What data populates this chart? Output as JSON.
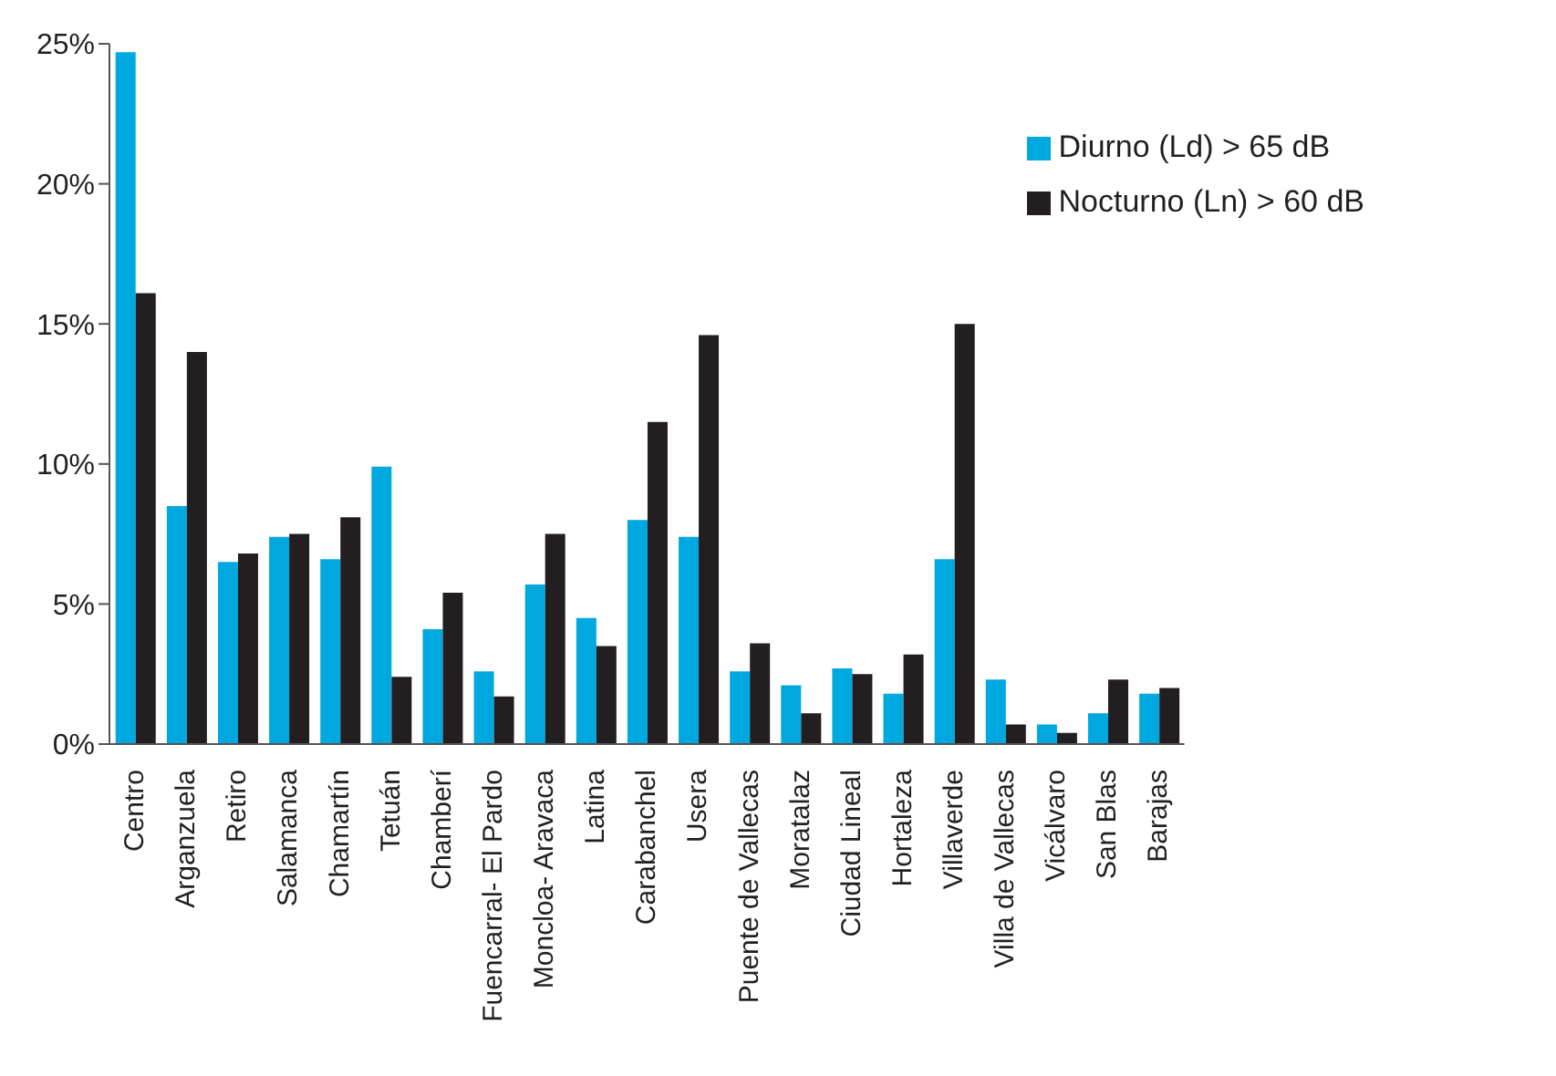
{
  "chart_data": {
    "type": "bar",
    "categories": [
      "Centro",
      "Arganzuela",
      "Retiro",
      "Salamanca",
      "Chamartín",
      "Tetuán",
      "Chamberí",
      "Fuencarral- El Pardo",
      "Moncloa- Aravaca",
      "Latina",
      "Carabanchel",
      "Usera",
      "Puente de Vallecas",
      "Moratalaz",
      "Ciudad Lineal",
      "Hortaleza",
      "Villaverde",
      "Villa de Vallecas",
      "Vicálvaro",
      "San Blas",
      "Barajas"
    ],
    "series": [
      {
        "name": "Diurno (Ld) > 65 dB",
        "color": "#00a8e0",
        "values": [
          24.7,
          8.5,
          6.5,
          7.4,
          6.6,
          9.9,
          4.1,
          2.6,
          5.7,
          4.5,
          8.0,
          7.4,
          2.6,
          2.1,
          2.7,
          1.8,
          6.6,
          2.3,
          0.7,
          1.1,
          1.8
        ]
      },
      {
        "name": "Nocturno (Ln) > 60 dB",
        "color": "#231f20",
        "values": [
          16.1,
          14.0,
          6.8,
          7.5,
          8.1,
          2.4,
          5.4,
          1.7,
          7.5,
          3.5,
          11.5,
          14.6,
          3.6,
          1.1,
          2.5,
          3.2,
          15.0,
          0.7,
          0.4,
          2.3,
          2.0
        ]
      }
    ],
    "ylim": [
      0,
      25
    ],
    "yticks": [
      {
        "value": 0,
        "label": "0%"
      },
      {
        "value": 5,
        "label": "5%"
      },
      {
        "value": 10,
        "label": "10%"
      },
      {
        "value": 15,
        "label": "15%"
      },
      {
        "value": 20,
        "label": "20%"
      },
      {
        "value": 25,
        "label": "25%"
      }
    ],
    "grid": false,
    "legend": "top right"
  }
}
